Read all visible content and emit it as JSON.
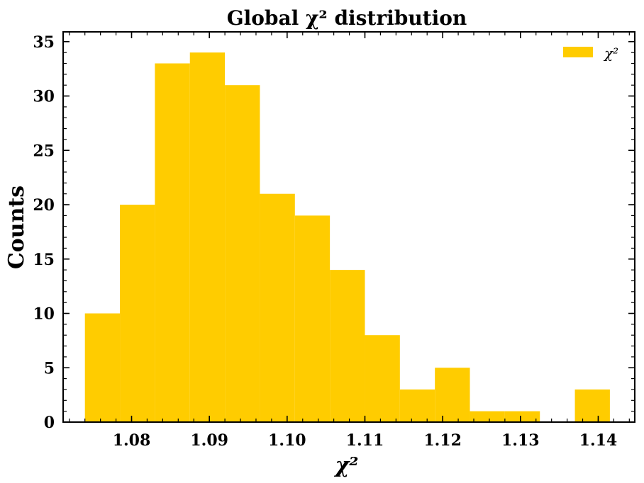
{
  "chart_data": {
    "type": "bar",
    "title": "Global χ² distribution",
    "xlabel": "χ²",
    "ylabel": "Counts",
    "legend": {
      "label": "χ²",
      "position": "top-right"
    },
    "bar_color": "#ffcc00",
    "bins": [
      {
        "x0": 1.074,
        "x1": 1.0785,
        "count": 10
      },
      {
        "x0": 1.0785,
        "x1": 1.083,
        "count": 20
      },
      {
        "x0": 1.083,
        "x1": 1.0875,
        "count": 33
      },
      {
        "x0": 1.0875,
        "x1": 1.092,
        "count": 34
      },
      {
        "x0": 1.092,
        "x1": 1.0965,
        "count": 31
      },
      {
        "x0": 1.0965,
        "x1": 1.101,
        "count": 21
      },
      {
        "x0": 1.101,
        "x1": 1.1055,
        "count": 19
      },
      {
        "x0": 1.1055,
        "x1": 1.11,
        "count": 14
      },
      {
        "x0": 1.11,
        "x1": 1.1145,
        "count": 8
      },
      {
        "x0": 1.1145,
        "x1": 1.119,
        "count": 3
      },
      {
        "x0": 1.119,
        "x1": 1.1235,
        "count": 5
      },
      {
        "x0": 1.1235,
        "x1": 1.128,
        "count": 1
      },
      {
        "x0": 1.128,
        "x1": 1.1325,
        "count": 1
      },
      {
        "x0": 1.1325,
        "x1": 1.137,
        "count": 0
      },
      {
        "x0": 1.137,
        "x1": 1.1415,
        "count": 3
      }
    ],
    "xlim": [
      1.0712,
      1.1447
    ],
    "ylim": [
      0,
      35.9
    ],
    "xticks": [
      1.08,
      1.09,
      1.1,
      1.11,
      1.12,
      1.13,
      1.14
    ],
    "xtick_labels": [
      "1.08",
      "1.09",
      "1.10",
      "1.11",
      "1.12",
      "1.13",
      "1.14"
    ],
    "yticks": [
      0,
      5,
      10,
      15,
      20,
      25,
      30,
      35
    ],
    "ytick_labels": [
      "0",
      "5",
      "10",
      "15",
      "20",
      "25",
      "30",
      "35"
    ],
    "x_minor_step": 0.002,
    "y_minor_step": 1,
    "grid": false
  }
}
